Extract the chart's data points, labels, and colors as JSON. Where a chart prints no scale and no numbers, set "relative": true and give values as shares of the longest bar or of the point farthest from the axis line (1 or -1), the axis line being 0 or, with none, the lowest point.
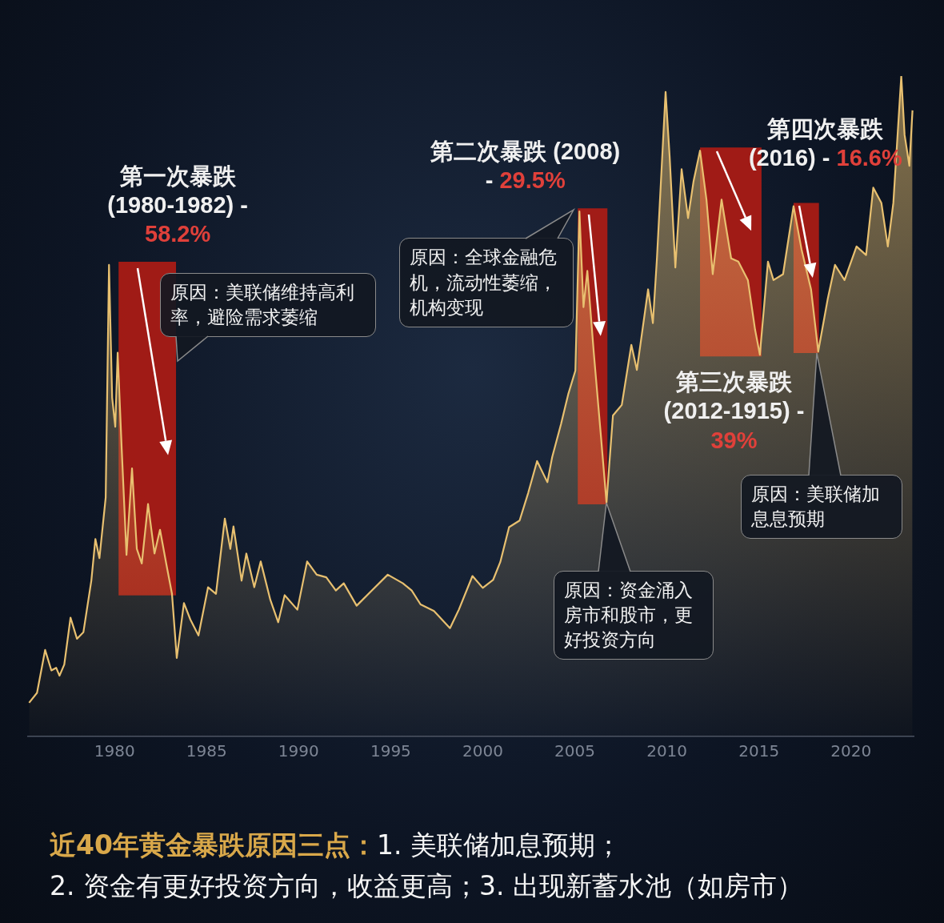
{
  "chart_data": {
    "type": "area",
    "relative": true,
    "title": "近40年黄金暴跌原因三点：",
    "subtitle": "1. 美联储加息预期；2. 资金有更好投资方向，收益更高；3. 出现新蓄水池（如房市）",
    "xlim": [
      1975.3,
      2023.4
    ],
    "xticks": [
      1980,
      1985,
      1990,
      1995,
      2000,
      2005,
      2010,
      2015,
      2020
    ],
    "x": [
      1975.36,
      1975.79,
      1976.23,
      1976.57,
      1976.83,
      1977.01,
      1977.27,
      1977.61,
      1977.96,
      1978.31,
      1978.74,
      1978.96,
      1979.18,
      1979.52,
      1979.7,
      1979.87,
      1980.04,
      1980.17,
      1980.39,
      1980.65,
      1980.95,
      1981.21,
      1981.48,
      1981.82,
      1982.17,
      1982.47,
      1982.82,
      1983.12,
      1983.38,
      1983.77,
      1984.12,
      1984.56,
      1985.08,
      1985.51,
      1985.99,
      1986.29,
      1986.46,
      1986.9,
      1987.16,
      1987.59,
      1987.94,
      1988.46,
      1988.89,
      1989.24,
      1989.93,
      1990.46,
      1990.98,
      1991.5,
      1992.02,
      1992.45,
      1993.15,
      1993.97,
      1994.84,
      1995.66,
      1996.14,
      1996.62,
      1997.35,
      1998.22,
      1998.7,
      1999.44,
      2000.0,
      2000.56,
      2000.95,
      2001.43,
      2002.0,
      2002.47,
      2002.95,
      2003.51,
      2003.77,
      2004.25,
      2004.64,
      2005.03,
      2005.25,
      2005.47,
      2005.68,
      2006.03,
      2006.42,
      2006.72,
      2007.07,
      2007.55,
      2008.07,
      2008.37,
      2008.98,
      2009.24,
      2009.46,
      2009.93,
      2010.15,
      2010.46,
      2010.8,
      2011.15,
      2011.45,
      2011.8,
      2012.15,
      2012.49,
      2012.97,
      2013.49,
      2013.88,
      2014.4,
      2014.79,
      2015.05,
      2015.49,
      2015.79,
      2016.31,
      2016.88,
      2017.31,
      2017.83,
      2018.22,
      2018.74,
      2019.13,
      2019.65,
      2020.3,
      2020.82,
      2021.21,
      2021.65,
      2022.0,
      2022.3,
      2022.73,
      2022.91,
      2023.17,
      2023.34
    ],
    "series": [
      {
        "color": "#e8c070",
        "values": [
          0.051,
          0.066,
          0.131,
          0.1,
          0.104,
          0.092,
          0.109,
          0.18,
          0.148,
          0.158,
          0.236,
          0.299,
          0.27,
          0.362,
          0.714,
          0.513,
          0.469,
          0.581,
          0.435,
          0.275,
          0.406,
          0.284,
          0.262,
          0.352,
          0.277,
          0.313,
          0.26,
          0.216,
          0.119,
          0.202,
          0.177,
          0.153,
          0.226,
          0.216,
          0.33,
          0.284,
          0.318,
          0.236,
          0.277,
          0.226,
          0.265,
          0.207,
          0.173,
          0.214,
          0.192,
          0.265,
          0.245,
          0.241,
          0.221,
          0.232,
          0.198,
          0.221,
          0.245,
          0.232,
          0.221,
          0.2,
          0.19,
          0.164,
          0.192,
          0.243,
          0.225,
          0.237,
          0.264,
          0.317,
          0.327,
          0.369,
          0.417,
          0.385,
          0.423,
          0.473,
          0.518,
          0.554,
          0.795,
          0.65,
          0.705,
          0.581,
          0.454,
          0.354,
          0.486,
          0.502,
          0.593,
          0.555,
          0.677,
          0.626,
          0.724,
          0.976,
          0.878,
          0.71,
          0.859,
          0.785,
          0.841,
          0.887,
          0.813,
          0.7,
          0.813,
          0.724,
          0.719,
          0.691,
          0.616,
          0.578,
          0.719,
          0.691,
          0.7,
          0.803,
          0.738,
          0.677,
          0.583,
          0.663,
          0.714,
          0.691,
          0.742,
          0.729,
          0.831,
          0.808,
          0.742,
          0.808,
          1.0,
          0.911,
          0.864,
          0.948
        ]
      }
    ],
    "bands": [
      {
        "axis": "x",
        "from": 1980.22,
        "to": 1983.34,
        "label": "第一次暴跌 (1980-1982) - 58.2%",
        "color": "#b01c14"
      },
      {
        "axis": "x",
        "from": 2005.16,
        "to": 2006.77,
        "label": "第二次暴跌 (2008) - 29.5%",
        "color": "#b01c14"
      },
      {
        "axis": "x",
        "from": 2011.8,
        "to": 2015.14,
        "label": "第三次暴跌 (2012-1915) - 39%",
        "color": "#b01c14"
      },
      {
        "axis": "x",
        "from": 2016.88,
        "to": 2018.26,
        "label": "第四次暴跌 (2016) - 16.6%",
        "color": "#b01c14"
      }
    ],
    "annotations": [
      {
        "text": "原因：美联储维持高利率，避险需求萎缩",
        "x": 1983.43,
        "y": 0.569
      },
      {
        "text": "原因：全球金融危机，流动性萎缩，机构变现",
        "x": 2004.95,
        "y": 0.797
      },
      {
        "text": "原因：资金涌入房市和股市，更好投资方向",
        "x": 2006.72,
        "y": 0.354
      },
      {
        "text": "原因：美联储加息息预期",
        "x": 2018.13,
        "y": 0.581
      }
    ]
  }
}
